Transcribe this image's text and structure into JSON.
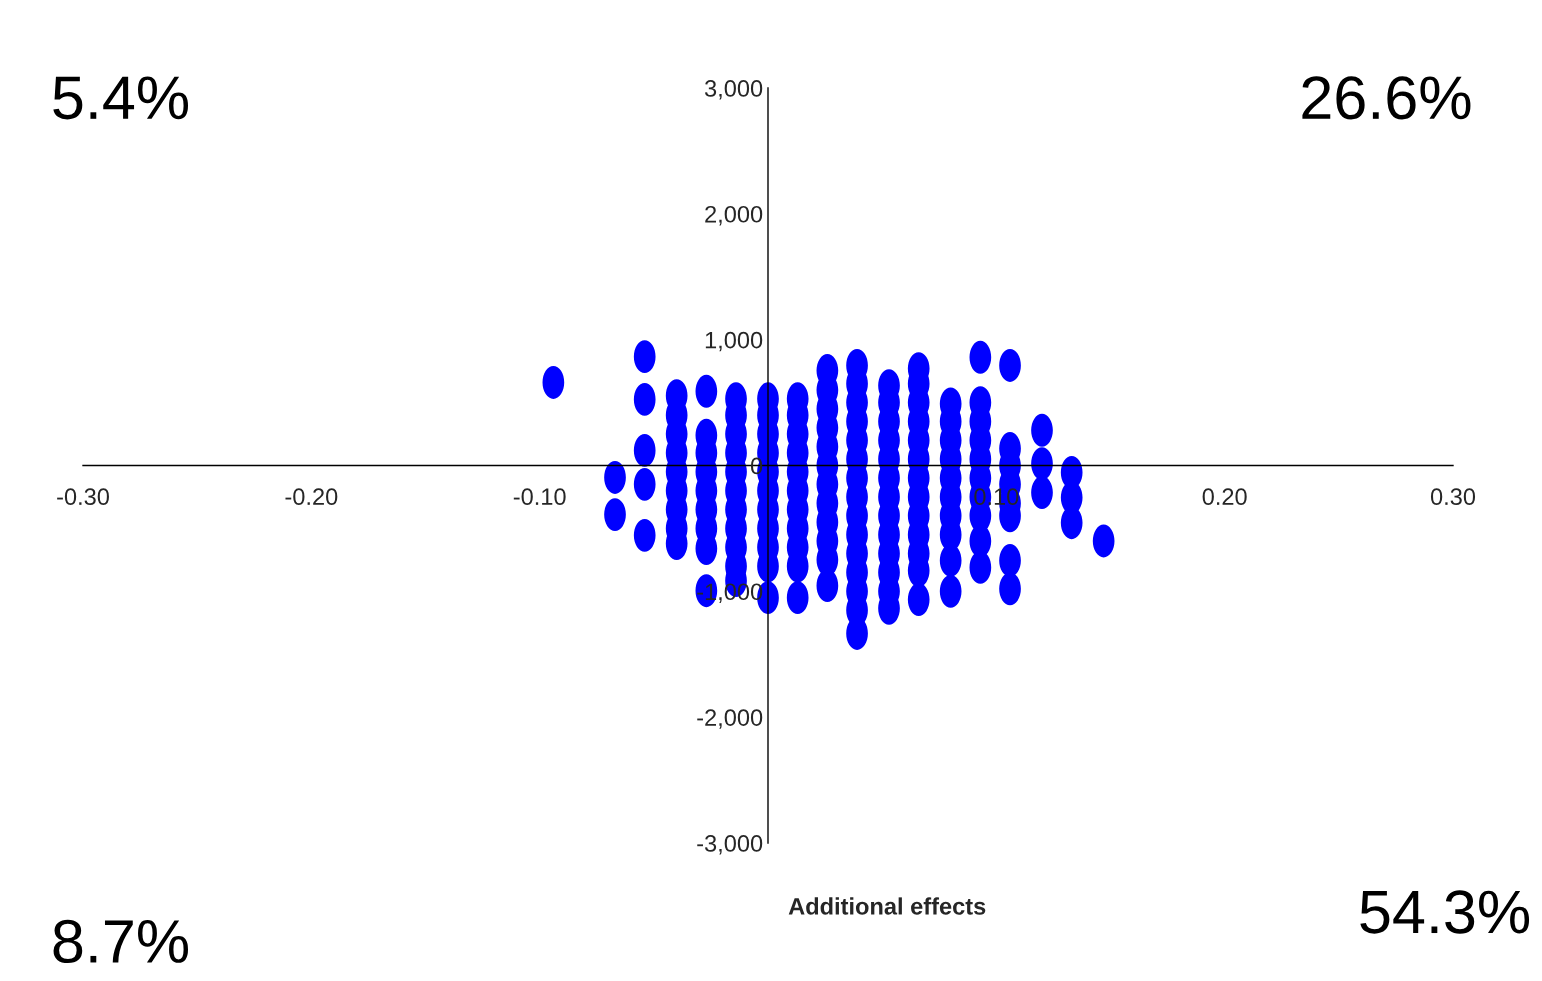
{
  "chart_data": {
    "type": "scatter",
    "xlabel": "Additional effects",
    "x": [
      -0.094,
      -0.067,
      -0.067,
      -0.054,
      -0.054,
      -0.054,
      -0.054,
      -0.054,
      -0.04,
      -0.04,
      -0.04,
      -0.04,
      -0.04,
      -0.04,
      -0.04,
      -0.04,
      -0.04,
      -0.027,
      -0.027,
      -0.027,
      -0.027,
      -0.027,
      -0.027,
      -0.027,
      -0.027,
      -0.027,
      -0.014,
      -0.014,
      -0.014,
      -0.014,
      -0.014,
      -0.014,
      -0.014,
      -0.014,
      -0.014,
      -0.014,
      -0.014,
      0.0,
      0.0,
      0.0,
      0.0,
      0.0,
      0.0,
      0.0,
      0.0,
      0.0,
      0.0,
      0.0,
      0.013,
      0.013,
      0.013,
      0.013,
      0.013,
      0.013,
      0.013,
      0.013,
      0.013,
      0.013,
      0.013,
      0.026,
      0.026,
      0.026,
      0.026,
      0.026,
      0.026,
      0.026,
      0.026,
      0.026,
      0.026,
      0.026,
      0.026,
      0.039,
      0.039,
      0.039,
      0.039,
      0.039,
      0.039,
      0.039,
      0.039,
      0.039,
      0.039,
      0.039,
      0.039,
      0.039,
      0.039,
      0.039,
      0.053,
      0.053,
      0.053,
      0.053,
      0.053,
      0.053,
      0.053,
      0.053,
      0.053,
      0.053,
      0.053,
      0.053,
      0.053,
      0.066,
      0.066,
      0.066,
      0.066,
      0.066,
      0.066,
      0.066,
      0.066,
      0.066,
      0.066,
      0.066,
      0.066,
      0.066,
      0.08,
      0.08,
      0.08,
      0.08,
      0.08,
      0.08,
      0.08,
      0.08,
      0.08,
      0.08,
      0.093,
      0.093,
      0.093,
      0.093,
      0.093,
      0.093,
      0.093,
      0.093,
      0.093,
      0.093,
      0.106,
      0.106,
      0.106,
      0.106,
      0.106,
      0.106,
      0.106,
      0.106,
      0.12,
      0.12,
      0.12,
      0.133,
      0.133,
      0.133,
      0.147
    ],
    "values": [
      660,
      -95,
      -390,
      865,
      525,
      120,
      -150,
      -555,
      555,
      400,
      250,
      100,
      -50,
      -200,
      -350,
      -500,
      -620,
      590,
      240,
      100,
      -50,
      -200,
      -350,
      -500,
      -660,
      -995,
      530,
      400,
      250,
      100,
      -50,
      -200,
      -350,
      -500,
      -650,
      -800,
      -915,
      530,
      400,
      250,
      100,
      -50,
      -200,
      -350,
      -500,
      -650,
      -800,
      -1050,
      530,
      400,
      250,
      100,
      -50,
      -200,
      -350,
      -500,
      -650,
      -800,
      -1050,
      755,
      600,
      450,
      300,
      150,
      0,
      -150,
      -300,
      -450,
      -600,
      -750,
      -955,
      795,
      650,
      500,
      350,
      200,
      50,
      -100,
      -250,
      -400,
      -550,
      -700,
      -850,
      -1000,
      -1150,
      -1335,
      635,
      500,
      350,
      200,
      50,
      -100,
      -250,
      -400,
      -550,
      -700,
      -850,
      -1000,
      -1135,
      770,
      650,
      500,
      350,
      200,
      50,
      -100,
      -250,
      -400,
      -550,
      -700,
      -835,
      -1065,
      490,
      350,
      200,
      50,
      -100,
      -250,
      -400,
      -550,
      -755,
      -1000,
      860,
      500,
      350,
      200,
      50,
      -100,
      -250,
      -400,
      -600,
      -810,
      795,
      135,
      0,
      -150,
      -300,
      -400,
      -755,
      -980,
      280,
      15,
      -215,
      -55,
      -255,
      -455,
      -600
    ],
    "color": "#0000ff",
    "marker": "circle",
    "xlim": [
      -0.3,
      0.3
    ],
    "xticks": [
      {
        "value": -0.3,
        "label": "-0.30"
      },
      {
        "value": -0.2,
        "label": "-0.20"
      },
      {
        "value": -0.1,
        "label": "-0.10"
      },
      {
        "value": 0.1,
        "label": "0.10"
      },
      {
        "value": 0.2,
        "label": "0.20"
      },
      {
        "value": 0.3,
        "label": "0.30"
      }
    ],
    "ylim": [
      -3000,
      3000
    ],
    "yticks": [
      {
        "value": 3000,
        "label": "3,000"
      },
      {
        "value": 2000,
        "label": "2,000"
      },
      {
        "value": 1000,
        "label": "1,000"
      },
      0,
      {
        "value": -1000,
        "label": "-1,000"
      },
      {
        "value": -2000,
        "label": "-2,000"
      },
      {
        "value": -3000,
        "label": "-3,000"
      }
    ],
    "grid": false,
    "annotations": [
      "5.4%",
      "26.6%",
      "8.7%",
      "54.3%"
    ]
  }
}
